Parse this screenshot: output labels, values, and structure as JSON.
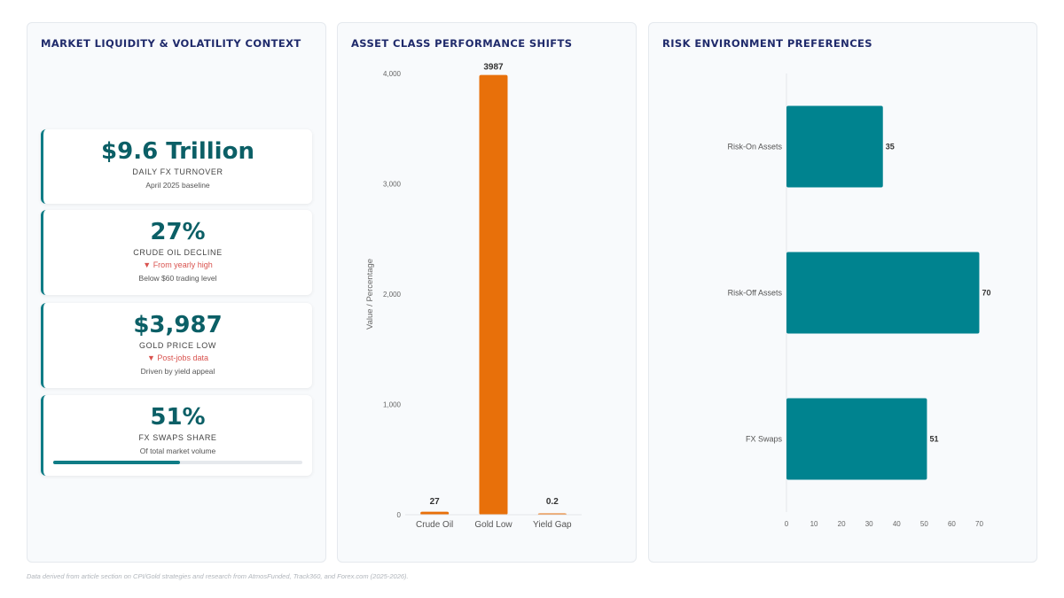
{
  "panels": {
    "kpi_title": "MARKET LIQUIDITY & VOLATILITY CONTEXT",
    "bar_title": "ASSET CLASS PERFORMANCE SHIFTS",
    "hbar_title": "RISK ENVIRONMENT PREFERENCES"
  },
  "kpis": [
    {
      "value": "$9.6 Trillion",
      "label": "DAILY FX TURNOVER",
      "sub": "April 2025 baseline"
    },
    {
      "value": "27%",
      "label": "CRUDE OIL DECLINE",
      "change": "▼ From yearly high",
      "sub": "Below $60 trading level"
    },
    {
      "value": "$3,987",
      "label": "GOLD PRICE LOW",
      "change": "▼ Post-jobs data",
      "sub": "Driven by yield appeal"
    },
    {
      "value": "51%",
      "label": "FX SWAPS SHARE",
      "sub": "Of total market volume",
      "progress": 0.51
    }
  ],
  "chart_data": [
    {
      "type": "bar",
      "categories": [
        "Crude Oil",
        "Gold Low",
        "Yield Gap"
      ],
      "values": [
        27,
        3987,
        0.2
      ],
      "value_labels": [
        "27",
        "3987",
        "0.2"
      ],
      "ylabel": "Value / Percentage",
      "ylim": [
        0,
        4000
      ],
      "yticks": [
        0,
        1000,
        2000,
        3000,
        4000
      ],
      "ytick_labels": [
        "0",
        "1,000",
        "2,000",
        "3,000",
        "4,000"
      ],
      "color": "#e8700a",
      "grid": false
    },
    {
      "type": "bar",
      "orientation": "horizontal",
      "categories": [
        "Risk-On Assets",
        "Risk-Off Assets",
        "FX Swaps"
      ],
      "values": [
        35,
        70,
        51
      ],
      "xlim": [
        0,
        75
      ],
      "xticks": [
        0,
        10,
        20,
        30,
        40,
        50,
        60,
        70
      ],
      "color": "#00838f",
      "grid": false
    }
  ],
  "footer": "Data derived from article section on CPI/Gold strategies and research from AtmosFunded, Track360, and Forex.com (2025-2026)."
}
